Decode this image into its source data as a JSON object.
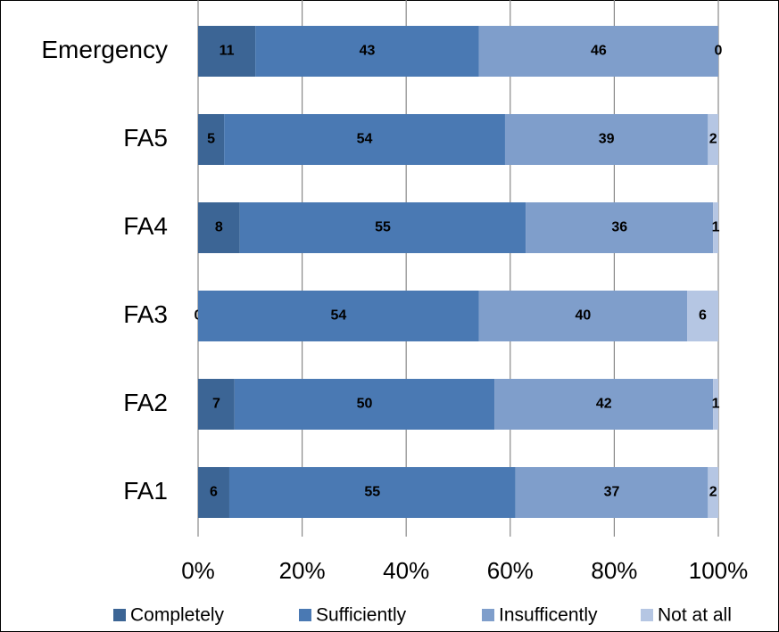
{
  "chart_data": {
    "type": "stacked_barh",
    "categories": [
      "Emergency",
      "FA5",
      "FA4",
      "FA3",
      "FA2",
      "FA1"
    ],
    "series": [
      {
        "name": "Completely",
        "color": "#3c6595",
        "values": [
          11,
          5,
          8,
          0,
          7,
          6
        ]
      },
      {
        "name": "Sufficiently",
        "color": "#4a79b3",
        "values": [
          43,
          54,
          55,
          54,
          50,
          55
        ]
      },
      {
        "name": "Insufficently",
        "color": "#7f9ecb",
        "values": [
          46,
          39,
          36,
          40,
          42,
          37
        ]
      },
      {
        "name": "Not at all",
        "color": "#b5c6e3",
        "values": [
          0,
          2,
          1,
          6,
          1,
          2
        ]
      }
    ],
    "xlim": [
      0,
      100
    ],
    "xticks": [
      {
        "value": 0,
        "label": "0%"
      },
      {
        "value": 20,
        "label": "20%"
      },
      {
        "value": 40,
        "label": "40%"
      },
      {
        "value": 60,
        "label": "60%"
      },
      {
        "value": 80,
        "label": "80%"
      },
      {
        "value": 100,
        "label": "100%"
      }
    ],
    "grid": true,
    "legend": "bottom"
  }
}
